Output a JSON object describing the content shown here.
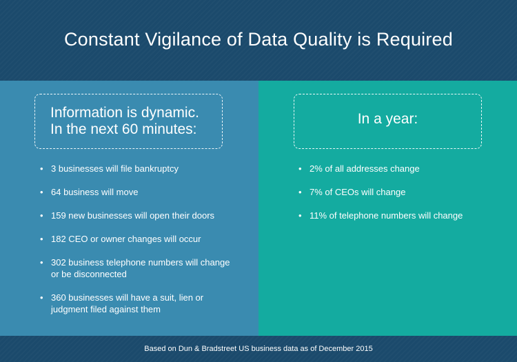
{
  "title": "Constant Vigilance of Data Quality is Required",
  "left_panel": {
    "heading": "Information is dynamic.\nIn the next 60 minutes:",
    "items": [
      "3 businesses will file bankruptcy",
      "64 business will move",
      "159 new businesses will open their doors",
      "182 CEO or owner changes will occur",
      "302 business telephone numbers will change or be disconnected",
      "360 businesses will have a suit, lien or judgment filed against them"
    ]
  },
  "right_panel": {
    "heading": "In a year:",
    "items": [
      "2% of all addresses change",
      "7% of CEOs will change",
      "11% of telephone numbers will change"
    ]
  },
  "footer": "Based on Dun & Bradstreet US business data as of December 2015",
  "colors": {
    "header_bg": "#1b4a6c",
    "left_bg": "#3a8bb0",
    "right_bg": "#14aba0",
    "text": "#ffffff"
  },
  "bullet_glyph": "•"
}
